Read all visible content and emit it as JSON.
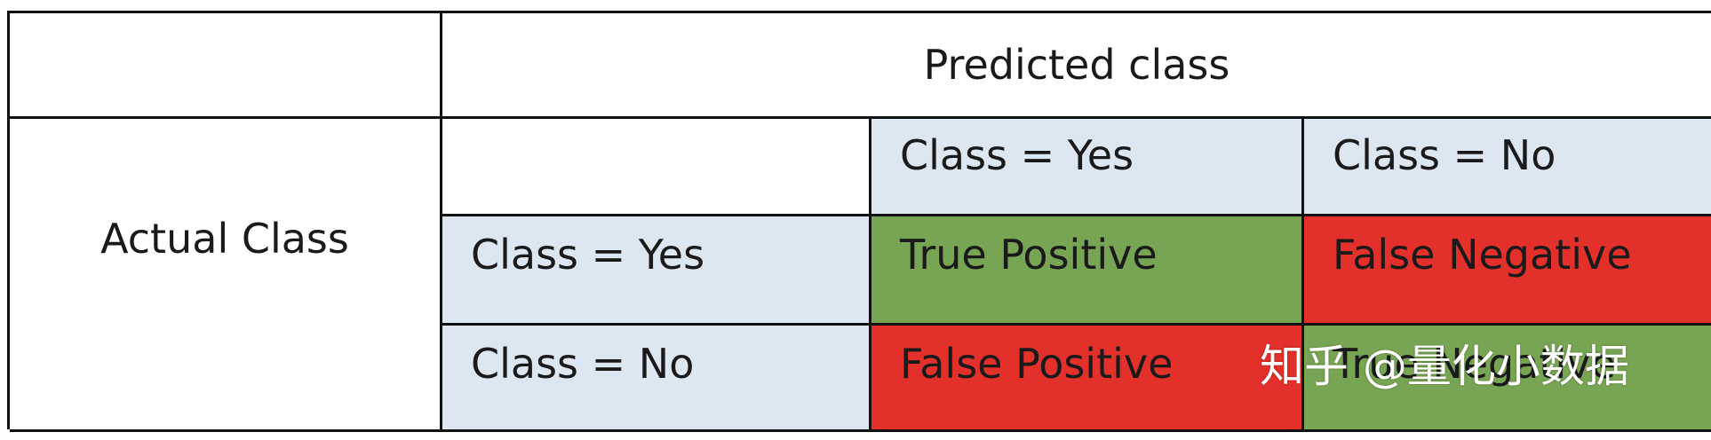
{
  "table": {
    "header": {
      "predicted_class": "Predicted class"
    },
    "actual_class_label": "Actual Class",
    "column_headers": [
      "Class = Yes",
      "Class = No"
    ],
    "row_headers": [
      "Class = Yes",
      "Class = No"
    ],
    "cells": [
      [
        "True Positive",
        "False Negative"
      ],
      [
        "False Positive",
        "True Negative"
      ]
    ],
    "colors": {
      "header_blue": "#dde7f1",
      "true_green": "#78a553",
      "false_red": "#e3302a"
    }
  },
  "watermark": "知乎 @量化小数据"
}
